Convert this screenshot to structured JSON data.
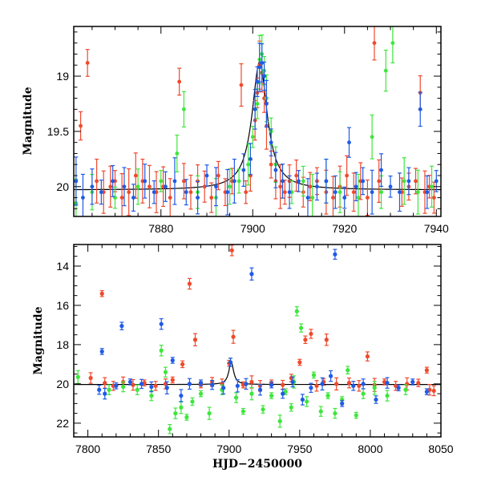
{
  "colors": {
    "red": "#f0492c",
    "green": "#3ee63c",
    "blue": "#1f5ae6",
    "model": "#000000"
  },
  "chart_data": [
    {
      "type": "scatter",
      "title": "",
      "xlabel": "",
      "ylabel": "Magnitude",
      "xlim": [
        7861,
        7941
      ],
      "ylim": [
        20.27,
        18.55
      ],
      "y_inverted": true,
      "xticks": [
        7880,
        7900,
        7920,
        7940
      ],
      "yticks": [
        19,
        19.5,
        20
      ],
      "ytick_labels": [
        "19",
        "19.5",
        "20"
      ],
      "grid": false,
      "legend": "none",
      "model_curve": {
        "peak_x": 7901.5,
        "peak_mag": 18.87,
        "baseline_mag": 20.03,
        "width_days": 2.0
      },
      "series": [
        {
          "color": "red",
          "points": [
            [
              7862.5,
              19.45
            ],
            [
              7864.0,
              18.88
            ],
            [
              7866.0,
              19.95
            ],
            [
              7867.5,
              20.05
            ],
            [
              7869.0,
              20.0
            ],
            [
              7870.0,
              19.95
            ],
            [
              7871.5,
              20.1
            ],
            [
              7873.0,
              20.05
            ],
            [
              7874.5,
              19.9
            ],
            [
              7876.0,
              19.95
            ],
            [
              7877.5,
              20.0
            ],
            [
              7879.0,
              20.05
            ],
            [
              7880.5,
              20.0
            ],
            [
              7882.0,
              20.1
            ],
            [
              7884.0,
              19.05
            ],
            [
              7885.0,
              19.95
            ],
            [
              7886.5,
              20.05
            ],
            [
              7888.0,
              19.95
            ],
            [
              7889.5,
              20.0
            ],
            [
              7891.0,
              20.1
            ],
            [
              7892.5,
              19.9
            ],
            [
              7894.0,
              20.05
            ],
            [
              7895.5,
              19.95
            ],
            [
              7897.5,
              19.08
            ],
            [
              7898.5,
              20.05
            ],
            [
              7899.5,
              19.9
            ],
            [
              7900.5,
              19.4
            ],
            [
              7901.0,
              19.15
            ],
            [
              7901.5,
              18.9
            ],
            [
              7902.0,
              18.97
            ],
            [
              7902.5,
              19.2
            ],
            [
              7903.0,
              19.45
            ],
            [
              7904.0,
              19.8
            ],
            [
              7905.0,
              19.95
            ],
            [
              7906.0,
              20.0
            ],
            [
              7907.0,
              20.05
            ],
            [
              7908.0,
              19.95
            ],
            [
              7909.5,
              19.9
            ],
            [
              7911.0,
              20.05
            ],
            [
              7912.5,
              20.0
            ],
            [
              7914.0,
              19.95
            ],
            [
              7916.0,
              20.05
            ],
            [
              7917.5,
              20.1
            ],
            [
              7919.0,
              20.0
            ],
            [
              7920.5,
              19.9
            ],
            [
              7922.0,
              20.05
            ],
            [
              7923.5,
              19.95
            ],
            [
              7925.0,
              20.1
            ],
            [
              7926.5,
              18.7
            ],
            [
              7927.5,
              19.95
            ],
            [
              7932.5,
              20.05
            ],
            [
              7934.0,
              20.0
            ],
            [
              7935.5,
              19.95
            ],
            [
              7936.5,
              19.15
            ],
            [
              7937.5,
              20.05
            ],
            [
              7938.5,
              20.0
            ],
            [
              7939.5,
              20.1
            ]
          ]
        },
        {
          "color": "green",
          "points": [
            [
              7861.5,
              20.15
            ],
            [
              7865.0,
              20.05
            ],
            [
              7870.0,
              20.1
            ],
            [
              7875.0,
              20.0
            ],
            [
              7880.0,
              19.95
            ],
            [
              7883.5,
              19.7
            ],
            [
              7885.0,
              19.3
            ],
            [
              7888.0,
              20.05
            ],
            [
              7892.0,
              20.1
            ],
            [
              7895.0,
              20.0
            ],
            [
              7897.0,
              19.95
            ],
            [
              7899.0,
              19.8
            ],
            [
              7900.0,
              19.55
            ],
            [
              7901.0,
              19.25
            ],
            [
              7901.5,
              18.85
            ],
            [
              7902.0,
              18.8
            ],
            [
              7902.5,
              18.95
            ],
            [
              7903.0,
              19.2
            ],
            [
              7904.0,
              19.5
            ],
            [
              7905.0,
              19.8
            ],
            [
              7906.5,
              19.95
            ],
            [
              7908.5,
              20.05
            ],
            [
              7911.0,
              19.95
            ],
            [
              7913.0,
              20.1
            ],
            [
              7916.0,
              19.95
            ],
            [
              7919.0,
              20.05
            ],
            [
              7923.0,
              20.1
            ],
            [
              7926.0,
              19.55
            ],
            [
              7928.0,
              20.05
            ],
            [
              7929.0,
              18.95
            ],
            [
              7930.5,
              18.7
            ],
            [
              7933.0,
              19.95
            ],
            [
              7936.0,
              20.05
            ],
            [
              7939.0,
              20.0
            ]
          ]
        },
        {
          "color": "blue",
          "points": [
            [
              7861.5,
              19.95
            ],
            [
              7863.0,
              20.1
            ],
            [
              7865.0,
              20.0
            ],
            [
              7867.0,
              20.05
            ],
            [
              7869.5,
              19.95
            ],
            [
              7872.0,
              20.0
            ],
            [
              7874.0,
              20.1
            ],
            [
              7876.5,
              19.95
            ],
            [
              7878.5,
              20.05
            ],
            [
              7881.0,
              20.0
            ],
            [
              7883.0,
              19.95
            ],
            [
              7885.5,
              20.05
            ],
            [
              7888.0,
              20.1
            ],
            [
              7890.0,
              19.9
            ],
            [
              7892.0,
              20.0
            ],
            [
              7894.5,
              20.05
            ],
            [
              7896.0,
              19.95
            ],
            [
              7898.0,
              19.85
            ],
            [
              7899.5,
              19.75
            ],
            [
              7900.5,
              19.3
            ],
            [
              7901.0,
              19.05
            ],
            [
              7901.5,
              18.92
            ],
            [
              7902.0,
              18.88
            ],
            [
              7902.5,
              19.0
            ],
            [
              7903.0,
              19.25
            ],
            [
              7904.0,
              19.6
            ],
            [
              7905.0,
              19.85
            ],
            [
              7906.5,
              19.95
            ],
            [
              7908.0,
              20.05
            ],
            [
              7910.0,
              19.95
            ],
            [
              7912.0,
              20.1
            ],
            [
              7914.0,
              20.0
            ],
            [
              7916.0,
              19.95
            ],
            [
              7918.0,
              20.05
            ],
            [
              7920.0,
              20.1
            ],
            [
              7921.0,
              19.6
            ],
            [
              7922.5,
              20.0
            ],
            [
              7924.0,
              19.95
            ],
            [
              7926.0,
              20.05
            ],
            [
              7928.0,
              19.85
            ],
            [
              7930.0,
              20.0
            ],
            [
              7932.0,
              20.05
            ],
            [
              7934.0,
              19.95
            ],
            [
              7936.5,
              19.3
            ],
            [
              7938.0,
              20.05
            ],
            [
              7940.0,
              19.95
            ]
          ]
        }
      ]
    },
    {
      "type": "scatter",
      "title": "",
      "xlabel": "HJD−2450000",
      "ylabel": "Magnitude",
      "xlim": [
        7790,
        8050
      ],
      "ylim": [
        22.7,
        12.9
      ],
      "y_inverted": true,
      "xticks": [
        7800,
        7850,
        7900,
        7950,
        8000,
        8050
      ],
      "yticks": [
        14,
        16,
        18,
        20,
        22
      ],
      "grid": false,
      "legend": "none",
      "model_curve": {
        "peak_x": 7901.5,
        "peak_mag": 18.87,
        "baseline_mag": 20.03,
        "width_days": 2.0
      },
      "series": [
        {
          "color": "red",
          "points": [
            [
              7802.0,
              19.7
            ],
            [
              7810.0,
              15.4
            ],
            [
              7812.0,
              19.95
            ],
            [
              7818.0,
              20.1
            ],
            [
              7825.0,
              19.9
            ],
            [
              7832.0,
              20.05
            ],
            [
              7840.0,
              19.95
            ],
            [
              7848.0,
              20.1
            ],
            [
              7855.0,
              20.0
            ],
            [
              7860.0,
              19.8
            ],
            [
              7867.0,
              19.0
            ],
            [
              7872.0,
              14.9
            ],
            [
              7876.0,
              17.75
            ],
            [
              7880.0,
              20.05
            ],
            [
              7888.0,
              19.9
            ],
            [
              7895.0,
              20.0
            ],
            [
              7900.0,
              18.95
            ],
            [
              7902.0,
              13.2
            ],
            [
              7903.0,
              17.6
            ],
            [
              7910.0,
              20.05
            ],
            [
              7916.0,
              19.9
            ],
            [
              7922.0,
              20.1
            ],
            [
              7930.0,
              19.95
            ],
            [
              7938.0,
              20.05
            ],
            [
              7944.0,
              19.7
            ],
            [
              7950.0,
              18.9
            ],
            [
              7954.0,
              17.75
            ],
            [
              7958.0,
              17.45
            ],
            [
              7962.0,
              20.1
            ],
            [
              7967.0,
              19.9
            ],
            [
              7969.0,
              17.75
            ],
            [
              7976.0,
              20.0
            ],
            [
              7985.0,
              19.95
            ],
            [
              7992.0,
              20.1
            ],
            [
              7998.0,
              18.6
            ],
            [
              8003.0,
              20.05
            ],
            [
              8010.0,
              19.9
            ],
            [
              8018.0,
              20.1
            ],
            [
              8026.0,
              20.0
            ],
            [
              8034.0,
              19.95
            ],
            [
              8040.0,
              19.3
            ],
            [
              8042.0,
              20.3
            ],
            [
              8045.0,
              20.35
            ]
          ]
        },
        {
          "color": "green",
          "points": [
            [
              7793.0,
              19.65
            ],
            [
              7815.0,
              20.3
            ],
            [
              7825.0,
              20.15
            ],
            [
              7835.0,
              20.3
            ],
            [
              7845.0,
              20.6
            ],
            [
              7852.0,
              18.3
            ],
            [
              7855.0,
              19.4
            ],
            [
              7858.0,
              22.3
            ],
            [
              7862.0,
              21.5
            ],
            [
              7866.0,
              21.2
            ],
            [
              7870.0,
              21.7
            ],
            [
              7874.0,
              20.9
            ],
            [
              7880.0,
              20.5
            ],
            [
              7886.0,
              21.5
            ],
            [
              7895.0,
              20.3
            ],
            [
              7901.0,
              18.9
            ],
            [
              7905.0,
              20.7
            ],
            [
              7910.0,
              21.4
            ],
            [
              7916.0,
              20.5
            ],
            [
              7924.0,
              21.3
            ],
            [
              7930.0,
              20.6
            ],
            [
              7936.0,
              21.9
            ],
            [
              7940.0,
              20.4
            ],
            [
              7944.0,
              21.2
            ],
            [
              7946.0,
              19.9
            ],
            [
              7948.0,
              16.3
            ],
            [
              7951.0,
              17.15
            ],
            [
              7955.0,
              20.9
            ],
            [
              7960.0,
              19.55
            ],
            [
              7965.0,
              21.4
            ],
            [
              7970.0,
              20.6
            ],
            [
              7975.0,
              21.5
            ],
            [
              7980.0,
              20.8
            ],
            [
              7984.0,
              19.3
            ],
            [
              7990.0,
              21.6
            ],
            [
              7995.0,
              20.5
            ],
            [
              8003.0,
              20.2
            ],
            [
              8012.0,
              20.6
            ],
            [
              8025.0,
              20.3
            ]
          ]
        },
        {
          "color": "blue",
          "points": [
            [
              7808.0,
              20.3
            ],
            [
              7810.0,
              18.35
            ],
            [
              7812.0,
              20.5
            ],
            [
              7820.0,
              20.1
            ],
            [
              7824.0,
              17.05
            ],
            [
              7830.0,
              19.9
            ],
            [
              7838.0,
              20.0
            ],
            [
              7845.0,
              20.15
            ],
            [
              7852.0,
              16.95
            ],
            [
              7856.0,
              20.2
            ],
            [
              7860.0,
              18.8
            ],
            [
              7866.0,
              20.6
            ],
            [
              7872.0,
              20.0
            ],
            [
              7880.0,
              19.95
            ],
            [
              7888.0,
              20.05
            ],
            [
              7896.0,
              20.2
            ],
            [
              7901.0,
              18.9
            ],
            [
              7906.0,
              20.1
            ],
            [
              7912.0,
              20.0
            ],
            [
              7916.0,
              14.4
            ],
            [
              7922.0,
              20.3
            ],
            [
              7930.0,
              20.05
            ],
            [
              7938.0,
              20.5
            ],
            [
              7945.0,
              19.9
            ],
            [
              7952.0,
              20.8
            ],
            [
              7958.0,
              20.2
            ],
            [
              7966.0,
              20.0
            ],
            [
              7972.0,
              19.6
            ],
            [
              7975.0,
              13.4
            ],
            [
              7980.0,
              21.0
            ],
            [
              7988.0,
              20.1
            ],
            [
              7995.0,
              20.0
            ],
            [
              8004.0,
              20.8
            ],
            [
              8012.0,
              19.95
            ],
            [
              8020.0,
              20.2
            ],
            [
              8030.0,
              19.9
            ],
            [
              8040.0,
              20.4
            ]
          ]
        }
      ]
    }
  ]
}
